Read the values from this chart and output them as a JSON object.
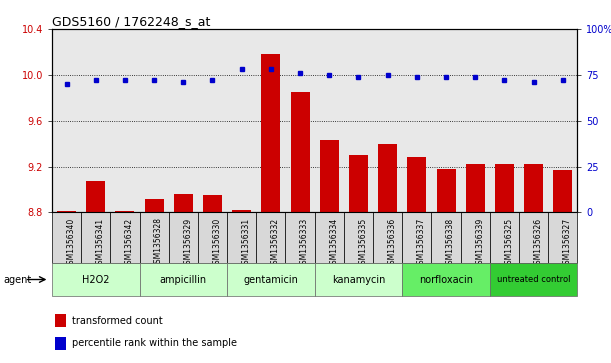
{
  "title": "GDS5160 / 1762248_s_at",
  "samples": [
    "GSM1356340",
    "GSM1356341",
    "GSM1356342",
    "GSM1356328",
    "GSM1356329",
    "GSM1356330",
    "GSM1356331",
    "GSM1356332",
    "GSM1356333",
    "GSM1356334",
    "GSM1356335",
    "GSM1356336",
    "GSM1356337",
    "GSM1356338",
    "GSM1356339",
    "GSM1356325",
    "GSM1356326",
    "GSM1356327"
  ],
  "transformed_count": [
    8.81,
    9.07,
    8.81,
    8.92,
    8.96,
    8.95,
    8.82,
    10.18,
    9.85,
    9.43,
    9.3,
    9.4,
    9.28,
    9.18,
    9.22,
    9.22,
    9.22,
    9.17
  ],
  "percentile_rank": [
    70,
    72,
    72,
    72,
    71,
    72,
    78,
    78,
    76,
    75,
    74,
    75,
    74,
    74,
    74,
    72,
    71,
    72
  ],
  "groups": [
    {
      "label": "H2O2",
      "start": 0,
      "end": 3,
      "color": "#ccffcc"
    },
    {
      "label": "ampicillin",
      "start": 3,
      "end": 6,
      "color": "#ccffcc"
    },
    {
      "label": "gentamicin",
      "start": 6,
      "end": 9,
      "color": "#ccffcc"
    },
    {
      "label": "kanamycin",
      "start": 9,
      "end": 12,
      "color": "#ccffcc"
    },
    {
      "label": "norfloxacin",
      "start": 12,
      "end": 15,
      "color": "#66ee66"
    },
    {
      "label": "untreated control",
      "start": 15,
      "end": 18,
      "color": "#33cc33"
    }
  ],
  "ylim_left": [
    8.8,
    10.4
  ],
  "ylim_right": [
    0,
    100
  ],
  "yticks_left": [
    8.8,
    9.2,
    9.6,
    10.0,
    10.4
  ],
  "yticks_right": [
    0,
    25,
    50,
    75,
    100
  ],
  "bar_color": "#cc0000",
  "dot_color": "#0000cc",
  "plot_bg": "#e8e8e8",
  "sample_cell_bg": "#d8d8d8",
  "legend_bar": "transformed count",
  "legend_dot": "percentile rank within the sample"
}
